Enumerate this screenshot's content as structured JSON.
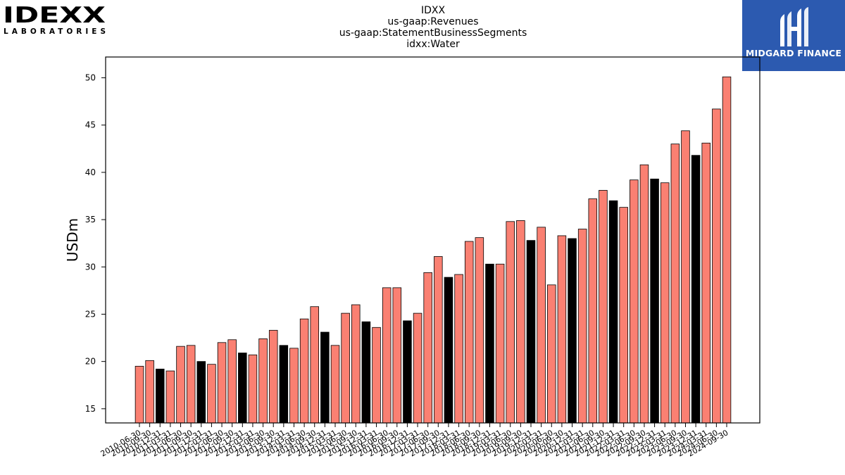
{
  "logos": {
    "left_brand": "IDEXX",
    "left_sub": "LABORATORIES",
    "right_text": "MIDGARD FINANCE"
  },
  "chart_data": {
    "type": "bar",
    "title_lines": [
      "IDXX",
      "us-gaap:Revenues",
      "us-gaap:StatementBusinessSegments",
      "idxx:Water"
    ],
    "ylabel": "USDm",
    "xlabel": "",
    "ylim": [
      13.5,
      52.2
    ],
    "yticks": [
      15,
      20,
      25,
      30,
      35,
      40,
      45,
      50
    ],
    "grid": false,
    "colors": {
      "bar": "#fa8072",
      "highlight": "#000000",
      "edge": "#000000"
    },
    "categories": [
      "2010-06-30",
      "2010-09-30",
      "2010-12-31",
      "2011-03-31",
      "2011-06-30",
      "2011-09-30",
      "2011-12-31",
      "2012-03-31",
      "2012-06-30",
      "2012-09-30",
      "2012-12-31",
      "2013-03-31",
      "2013-06-30",
      "2013-09-30",
      "2013-12-31",
      "2014-03-31",
      "2014-06-30",
      "2014-09-30",
      "2014-12-31",
      "2015-03-31",
      "2015-06-30",
      "2015-09-30",
      "2015-12-31",
      "2016-03-31",
      "2016-06-30",
      "2016-09-30",
      "2016-12-31",
      "2017-03-31",
      "2017-06-30",
      "2017-09-30",
      "2017-12-31",
      "2018-03-31",
      "2018-06-30",
      "2018-09-30",
      "2018-12-31",
      "2019-03-31",
      "2019-06-30",
      "2019-09-30",
      "2019-12-31",
      "2020-03-31",
      "2020-06-30",
      "2020-09-30",
      "2020-12-31",
      "2021-03-31",
      "2021-06-30",
      "2021-09-30",
      "2021-12-31",
      "2022-03-31",
      "2022-06-30",
      "2022-09-30",
      "2022-12-31",
      "2023-03-31",
      "2023-06-30",
      "2023-09-30",
      "2023-12-31",
      "2024-03-31",
      "2024-06-30",
      "2024-09-30"
    ],
    "values": [
      19.5,
      20.1,
      19.2,
      19.0,
      21.6,
      21.7,
      20.0,
      19.7,
      22.0,
      22.3,
      20.9,
      20.7,
      22.4,
      23.3,
      21.7,
      21.4,
      24.5,
      25.8,
      23.1,
      21.7,
      25.1,
      26.0,
      24.2,
      23.6,
      27.8,
      27.8,
      24.3,
      25.1,
      29.4,
      31.1,
      28.9,
      29.2,
      32.7,
      33.1,
      30.3,
      30.3,
      34.8,
      34.9,
      32.8,
      34.2,
      28.1,
      33.3,
      33.0,
      34.0,
      37.2,
      38.1,
      37.0,
      36.3,
      39.2,
      40.8,
      39.3,
      38.9,
      43.0,
      44.4,
      41.8,
      43.1,
      46.7,
      50.1
    ],
    "highlight": [
      false,
      false,
      true,
      false,
      false,
      false,
      true,
      false,
      false,
      false,
      true,
      false,
      false,
      false,
      true,
      false,
      false,
      false,
      true,
      false,
      false,
      false,
      true,
      false,
      false,
      false,
      true,
      false,
      false,
      false,
      true,
      false,
      false,
      false,
      true,
      false,
      false,
      false,
      true,
      false,
      false,
      false,
      true,
      false,
      false,
      false,
      true,
      false,
      false,
      false,
      true,
      false,
      false,
      false,
      true,
      false,
      false,
      false
    ]
  }
}
